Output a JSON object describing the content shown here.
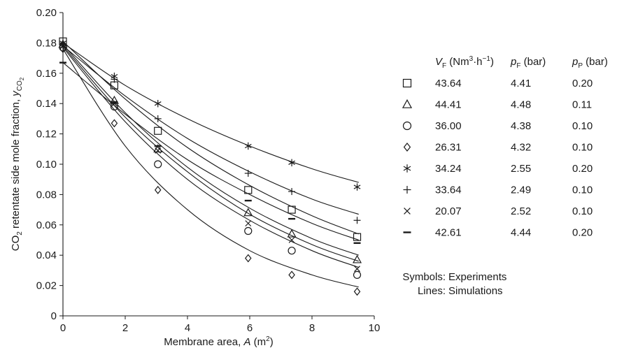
{
  "chart_data": {
    "type": "scatter",
    "xlabel": {
      "main": "Membrane area, ",
      "var": "A",
      "unit": " (m",
      "sup": "2",
      "close": ")"
    },
    "ylabel": {
      "pre": "CO",
      "sub": "2",
      "main": " retentate side mole fraction, ",
      "var": "y",
      "varsub": "CO",
      "varsubsub": "2"
    },
    "xlim": [
      0,
      10
    ],
    "ylim": [
      0,
      0.2
    ],
    "xticks": [
      {
        "v": 0,
        "label": "0"
      },
      {
        "v": 2,
        "label": "2"
      },
      {
        "v": 4,
        "label": "4"
      },
      {
        "v": 6,
        "label": "6"
      },
      {
        "v": 8,
        "label": "8"
      },
      {
        "v": 10,
        "label": "10"
      }
    ],
    "yticks": [
      {
        "v": 0,
        "label": "0"
      },
      {
        "v": 0.02,
        "label": "0.02"
      },
      {
        "v": 0.04,
        "label": "0.04"
      },
      {
        "v": 0.06,
        "label": "0.06"
      },
      {
        "v": 0.08,
        "label": "0.08"
      },
      {
        "v": 0.1,
        "label": "0.10"
      },
      {
        "v": 0.12,
        "label": "0.12"
      },
      {
        "v": 0.14,
        "label": "0.14"
      },
      {
        "v": 0.16,
        "label": "0.16"
      },
      {
        "v": 0.18,
        "label": "0.18"
      },
      {
        "v": 0.2,
        "label": "0.20"
      }
    ],
    "grid": false,
    "legend_position": "right",
    "legend_header": {
      "vf": {
        "var": "V",
        "sub": "F",
        "unit": " (Nm",
        "sup": "3",
        "mid": "·h",
        "sup2": "−1",
        "close": ")"
      },
      "pf": {
        "var": "p",
        "sub": "F",
        "unit": " (bar)"
      },
      "pp": {
        "var": "p",
        "sub": "P",
        "unit": " (bar)"
      }
    },
    "series": [
      {
        "marker": "square",
        "vf": "43.64",
        "pf": "4.41",
        "pp": "0.20",
        "points": [
          [
            0,
            0.181
          ],
          [
            1.65,
            0.152
          ],
          [
            3.05,
            0.122
          ],
          [
            5.95,
            0.083
          ],
          [
            7.35,
            0.07
          ],
          [
            9.45,
            0.052
          ]
        ],
        "line": [
          [
            0,
            0.181
          ],
          [
            2,
            0.143
          ],
          [
            4,
            0.111
          ],
          [
            6,
            0.086
          ],
          [
            8,
            0.066
          ],
          [
            9.5,
            0.054
          ]
        ]
      },
      {
        "marker": "triangle",
        "vf": "44.41",
        "pf": "4.48",
        "pp": "0.11",
        "points": [
          [
            0,
            0.179
          ],
          [
            1.65,
            0.142
          ],
          [
            3.05,
            0.11
          ],
          [
            5.95,
            0.068
          ],
          [
            7.35,
            0.054
          ],
          [
            9.45,
            0.037
          ]
        ],
        "line": [
          [
            0,
            0.179
          ],
          [
            2,
            0.134
          ],
          [
            4,
            0.098
          ],
          [
            6,
            0.071
          ],
          [
            8,
            0.051
          ],
          [
            9.5,
            0.04
          ]
        ]
      },
      {
        "marker": "circle",
        "vf": "36.00",
        "pf": "4.38",
        "pp": "0.10",
        "points": [
          [
            0,
            0.177
          ],
          [
            1.65,
            0.138
          ],
          [
            3.05,
            0.1
          ],
          [
            5.95,
            0.056
          ],
          [
            7.35,
            0.043
          ],
          [
            9.45,
            0.027
          ]
        ],
        "line": [
          [
            0,
            0.177
          ],
          [
            2,
            0.128
          ],
          [
            4,
            0.09
          ],
          [
            6,
            0.063
          ],
          [
            8,
            0.043
          ],
          [
            9.5,
            0.032
          ]
        ]
      },
      {
        "marker": "diamond",
        "vf": "26.31",
        "pf": "4.32",
        "pp": "0.10",
        "points": [
          [
            0,
            0.176
          ],
          [
            1.65,
            0.127
          ],
          [
            3.05,
            0.083
          ],
          [
            5.95,
            0.038
          ],
          [
            7.35,
            0.027
          ],
          [
            9.45,
            0.016
          ]
        ],
        "line": [
          [
            0,
            0.176
          ],
          [
            2,
            0.112
          ],
          [
            4,
            0.07
          ],
          [
            6,
            0.043
          ],
          [
            8,
            0.027
          ],
          [
            9.5,
            0.019
          ]
        ]
      },
      {
        "marker": "asterisk",
        "vf": "34.24",
        "pf": "2.55",
        "pp": "0.20",
        "points": [
          [
            0,
            0.18
          ],
          [
            1.65,
            0.158
          ],
          [
            3.05,
            0.14
          ],
          [
            5.95,
            0.112
          ],
          [
            7.35,
            0.101
          ],
          [
            9.45,
            0.085
          ]
        ],
        "line": [
          [
            0,
            0.18
          ],
          [
            2,
            0.152
          ],
          [
            4,
            0.13
          ],
          [
            6,
            0.112
          ],
          [
            8,
            0.097
          ],
          [
            9.5,
            0.088
          ]
        ]
      },
      {
        "marker": "plus",
        "vf": "33.64",
        "pf": "2.49",
        "pp": "0.10",
        "points": [
          [
            0,
            0.178
          ],
          [
            1.65,
            0.156
          ],
          [
            3.05,
            0.13
          ],
          [
            5.95,
            0.094
          ],
          [
            7.35,
            0.082
          ],
          [
            9.45,
            0.063
          ]
        ],
        "line": [
          [
            0,
            0.178
          ],
          [
            2,
            0.145
          ],
          [
            4,
            0.117
          ],
          [
            6,
            0.095
          ],
          [
            8,
            0.077
          ],
          [
            9.5,
            0.067
          ]
        ]
      },
      {
        "marker": "cross",
        "vf": "20.07",
        "pf": "2.52",
        "pp": "0.10",
        "points": [
          [
            0,
            0.178
          ],
          [
            1.65,
            0.14
          ],
          [
            3.05,
            0.109
          ],
          [
            5.95,
            0.061
          ],
          [
            7.35,
            0.05
          ],
          [
            9.45,
            0.031
          ]
        ],
        "line": [
          [
            0,
            0.178
          ],
          [
            2,
            0.131
          ],
          [
            4,
            0.095
          ],
          [
            6,
            0.067
          ],
          [
            8,
            0.047
          ],
          [
            9.5,
            0.036
          ]
        ]
      },
      {
        "marker": "dash",
        "vf": "42.61",
        "pf": "4.44",
        "pp": "0.20",
        "points": [
          [
            0,
            0.167
          ],
          [
            1.65,
            0.141
          ],
          [
            3.05,
            0.112
          ],
          [
            5.95,
            0.076
          ],
          [
            7.35,
            0.064
          ],
          [
            9.45,
            0.048
          ]
        ],
        "line": [
          [
            0,
            0.167
          ],
          [
            2,
            0.133
          ],
          [
            4,
            0.103
          ],
          [
            6,
            0.08
          ],
          [
            8,
            0.061
          ],
          [
            9.5,
            0.05
          ]
        ]
      }
    ],
    "notes": [
      {
        "key": "Symbols:",
        "value": "Experiments"
      },
      {
        "key": "Lines:",
        "value": "Simulations"
      }
    ]
  }
}
